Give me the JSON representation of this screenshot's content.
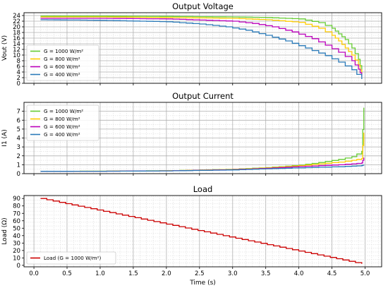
{
  "chart_data": [
    {
      "type": "line",
      "title": "Output Voltage",
      "ylabel": "Vout (V)",
      "xlim": [
        -0.15,
        5.25
      ],
      "ylim": [
        0,
        25
      ],
      "yticks": [
        0,
        2,
        4,
        6,
        8,
        10,
        12,
        14,
        16,
        18,
        20,
        22,
        24
      ],
      "grid": true,
      "legend": "lower-left",
      "series": [
        {
          "name": "G = 1000 W/m²",
          "color": "#66cc33",
          "x": [
            0.1,
            1.0,
            2.0,
            3.0,
            3.5,
            4.0,
            4.3,
            4.5,
            4.6,
            4.7,
            4.8,
            4.9,
            4.95
          ],
          "y": [
            23.8,
            23.8,
            23.7,
            23.5,
            23.3,
            22.8,
            21.5,
            19.5,
            17.5,
            15.5,
            12.5,
            8.5,
            4.0
          ]
        },
        {
          "name": "G = 800 W/m²",
          "color": "#ffcc00",
          "x": [
            0.1,
            1.0,
            2.0,
            3.0,
            3.5,
            4.0,
            4.3,
            4.5,
            4.6,
            4.7,
            4.8,
            4.9,
            4.95
          ],
          "y": [
            23.5,
            23.5,
            23.3,
            23.0,
            22.5,
            21.6,
            19.5,
            17.0,
            15.0,
            12.5,
            10.0,
            6.5,
            3.0
          ]
        },
        {
          "name": "G = 600 W/m²",
          "color": "#bb00bb",
          "x": [
            0.1,
            1.0,
            2.0,
            3.0,
            3.3,
            3.6,
            3.9,
            4.2,
            4.4,
            4.6,
            4.8,
            4.9,
            4.95
          ],
          "y": [
            23.0,
            23.0,
            22.8,
            22.0,
            21.2,
            20.0,
            18.2,
            15.8,
            13.5,
            11.0,
            8.0,
            5.0,
            2.5
          ]
        },
        {
          "name": "G = 400 W/m²",
          "color": "#2b7bb9",
          "x": [
            0.1,
            1.0,
            2.0,
            2.5,
            2.9,
            3.2,
            3.5,
            3.8,
            4.1,
            4.4,
            4.6,
            4.8,
            4.95
          ],
          "y": [
            22.5,
            22.3,
            21.8,
            21.0,
            20.0,
            18.8,
            17.0,
            15.0,
            12.5,
            9.8,
            7.5,
            4.8,
            1.5
          ]
        }
      ]
    },
    {
      "type": "line",
      "title": "Output Current",
      "ylabel": "I1 (A)",
      "xlim": [
        -0.15,
        5.25
      ],
      "ylim": [
        0,
        8
      ],
      "yticks": [
        0,
        1,
        2,
        3,
        4,
        5,
        6,
        7
      ],
      "grid": true,
      "legend": "upper-left",
      "series": [
        {
          "name": "G = 1000 W/m²",
          "color": "#66cc33",
          "x": [
            0.1,
            1.0,
            2.0,
            3.0,
            3.5,
            4.0,
            4.3,
            4.6,
            4.8,
            4.95,
            4.98
          ],
          "y": [
            0.26,
            0.28,
            0.33,
            0.5,
            0.68,
            0.95,
            1.25,
            1.6,
            1.9,
            2.5,
            7.4
          ]
        },
        {
          "name": "G = 800 W/m²",
          "color": "#ffcc00",
          "x": [
            0.1,
            1.0,
            2.0,
            3.0,
            3.5,
            4.0,
            4.3,
            4.6,
            4.8,
            4.95,
            4.98
          ],
          "y": [
            0.26,
            0.28,
            0.33,
            0.48,
            0.65,
            0.9,
            1.1,
            1.3,
            1.5,
            1.7,
            4.6
          ]
        },
        {
          "name": "G = 600 W/m²",
          "color": "#bb00bb",
          "x": [
            0.1,
            1.0,
            2.0,
            3.0,
            3.5,
            4.0,
            4.3,
            4.6,
            4.8,
            4.95,
            4.98
          ],
          "y": [
            0.26,
            0.27,
            0.32,
            0.45,
            0.6,
            0.8,
            0.9,
            1.0,
            1.1,
            1.2,
            1.8
          ]
        },
        {
          "name": "G = 400 W/m²",
          "color": "#2b7bb9",
          "x": [
            0.1,
            1.0,
            2.0,
            3.0,
            3.5,
            4.0,
            4.3,
            4.6,
            4.8,
            4.95,
            4.98
          ],
          "y": [
            0.26,
            0.27,
            0.31,
            0.42,
            0.55,
            0.65,
            0.72,
            0.78,
            0.85,
            0.9,
            1.0
          ]
        }
      ]
    },
    {
      "type": "line",
      "title": "Load",
      "ylabel": "Load (Ω)",
      "xlabel": "Time (s)",
      "xlim": [
        -0.15,
        5.25
      ],
      "ylim": [
        -2,
        94
      ],
      "yticks": [
        0,
        10,
        20,
        30,
        40,
        50,
        60,
        70,
        80,
        90
      ],
      "xticks": [
        "0.0",
        "0.5",
        "1.0",
        "1.5",
        "2.0",
        "2.5",
        "3.0",
        "3.5",
        "4.0",
        "4.5",
        "5.0"
      ],
      "grid": true,
      "legend": "lower-left",
      "series": [
        {
          "name": "Load (G = 1000 W/m²)",
          "color": "#cc0000",
          "x": [
            0.1,
            4.95
          ],
          "y": [
            90,
            2
          ]
        }
      ]
    }
  ]
}
